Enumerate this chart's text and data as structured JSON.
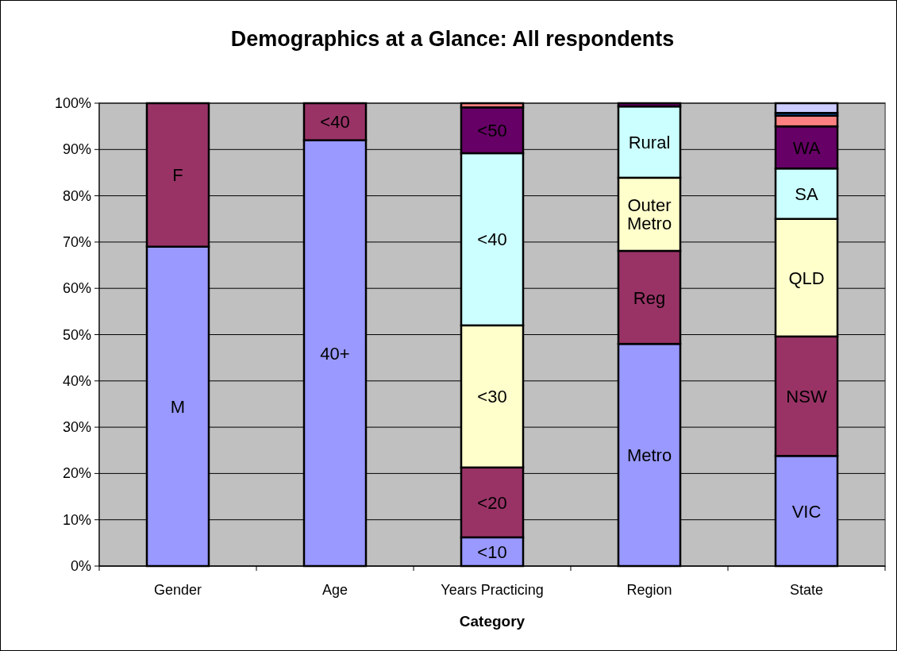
{
  "chart_data": {
    "type": "bar",
    "title": "Demographics at a Glance: All respondents",
    "xlabel": "Category",
    "categories": [
      "Gender",
      "Age",
      "Years Practicing",
      "Region",
      "State"
    ],
    "stacked": true,
    "ylim": [
      0,
      100
    ],
    "grid": "y",
    "yticks": [
      {
        "value": 0,
        "label": "0%"
      },
      {
        "value": 10,
        "label": "10%"
      },
      {
        "value": 20,
        "label": "20%"
      },
      {
        "value": 30,
        "label": "30%"
      },
      {
        "value": 40,
        "label": "40%"
      },
      {
        "value": 50,
        "label": "50%"
      },
      {
        "value": 60,
        "label": "60%"
      },
      {
        "value": 70,
        "label": "70%"
      },
      {
        "value": 80,
        "label": "80%"
      },
      {
        "value": 90,
        "label": "90%"
      },
      {
        "value": 100,
        "label": "100%"
      }
    ],
    "series": [
      {
        "color": "#9999ff",
        "values": [
          69,
          92,
          6.2,
          48,
          23.8
        ],
        "value_labels": [
          "M",
          "40+",
          "<10",
          "Metro",
          "VIC"
        ]
      },
      {
        "color": "#993366",
        "values": [
          31,
          8,
          15.1,
          20.1,
          25.8
        ],
        "value_labels": [
          "F",
          "<40",
          "<20",
          "Reg",
          "NSW"
        ]
      },
      {
        "color": "#ffffcc",
        "values": [
          null,
          null,
          30.7,
          15.8,
          25.4
        ],
        "value_labels": [
          null,
          null,
          "<30",
          "Outer Metro",
          "QLD"
        ]
      },
      {
        "color": "#ccffff",
        "values": [
          null,
          null,
          37.2,
          15.4,
          10.9
        ],
        "value_labels": [
          null,
          null,
          "<40",
          "Rural",
          "SA"
        ]
      },
      {
        "color": "#660066",
        "values": [
          null,
          null,
          9.9,
          0.7,
          9.1
        ],
        "value_labels": [
          null,
          null,
          "<50",
          null,
          "WA"
        ]
      },
      {
        "color": "#ff8080",
        "values": [
          null,
          null,
          0.9,
          null,
          2.3
        ],
        "value_labels": [
          null,
          null,
          null,
          null,
          null
        ]
      },
      {
        "color": "#0066cc",
        "values": [
          null,
          null,
          null,
          null,
          0.6
        ],
        "value_labels": [
          null,
          null,
          null,
          null,
          null
        ]
      },
      {
        "color": "#ccccff",
        "values": [
          null,
          null,
          null,
          null,
          2.1
        ],
        "value_labels": [
          null,
          null,
          null,
          null,
          null
        ]
      }
    ]
  }
}
